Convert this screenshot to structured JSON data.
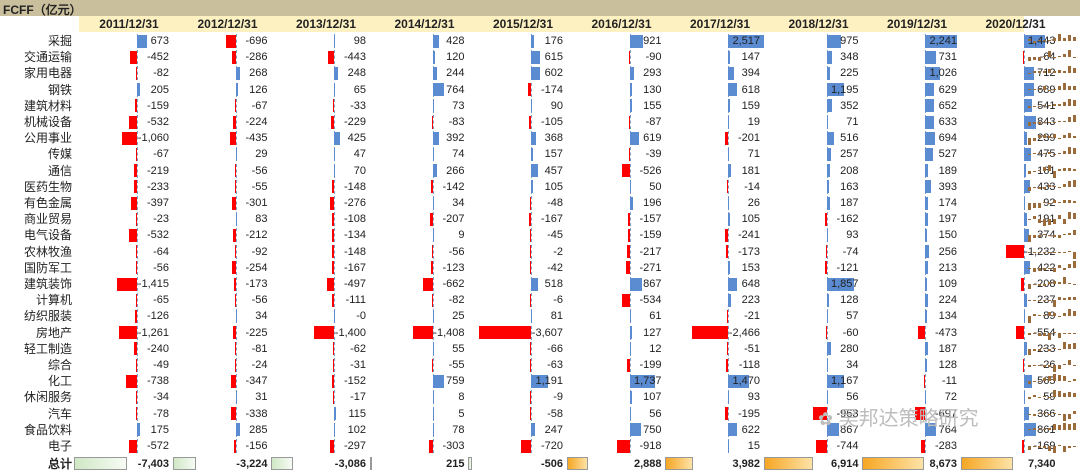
{
  "title": "FCFF（亿元）",
  "watermark": "吴邦达策略研究",
  "years": [
    "2011/12/31",
    "2012/12/31",
    "2013/12/31",
    "2014/12/31",
    "2015/12/31",
    "2016/12/31",
    "2017/12/31",
    "2018/12/31",
    "2019/12/31",
    "2020/12/31"
  ],
  "rows": [
    {
      "name": "采掘",
      "values": [
        673,
        -696,
        98,
        428,
        176,
        921,
        2517,
        975,
        2241,
        1443
      ]
    },
    {
      "name": "交通运输",
      "values": [
        -452,
        -286,
        -443,
        120,
        615,
        -90,
        147,
        348,
        731,
        -64
      ]
    },
    {
      "name": "家用电器",
      "values": [
        -82,
        268,
        248,
        244,
        602,
        293,
        394,
        225,
        1026,
        712
      ]
    },
    {
      "name": "钢铁",
      "values": [
        205,
        126,
        65,
        764,
        -174,
        130,
        618,
        1195,
        629,
        689
      ]
    },
    {
      "name": "建筑材料",
      "values": [
        -159,
        -67,
        -33,
        73,
        90,
        155,
        159,
        352,
        652,
        541
      ]
    },
    {
      "name": "机械设备",
      "values": [
        -532,
        -224,
        -229,
        -83,
        -105,
        -87,
        19,
        71,
        633,
        843
      ]
    },
    {
      "name": "公用事业",
      "values": [
        -1060,
        -435,
        425,
        392,
        368,
        619,
        -201,
        516,
        694,
        239
      ]
    },
    {
      "name": "传媒",
      "values": [
        -67,
        29,
        47,
        74,
        157,
        -39,
        71,
        257,
        527,
        475
      ]
    },
    {
      "name": "通信",
      "values": [
        -219,
        -56,
        70,
        266,
        457,
        -526,
        181,
        208,
        189,
        161
      ]
    },
    {
      "name": "医药生物",
      "values": [
        -233,
        -55,
        -148,
        -142,
        105,
        50,
        -14,
        163,
        393,
        433
      ]
    },
    {
      "name": "有色金属",
      "values": [
        -397,
        -301,
        -276,
        34,
        -48,
        196,
        26,
        187,
        174,
        92
      ]
    },
    {
      "name": "商业贸易",
      "values": [
        -23,
        83,
        -108,
        -207,
        -167,
        -157,
        105,
        -162,
        197,
        191
      ]
    },
    {
      "name": "电气设备",
      "values": [
        -532,
        -212,
        -134,
        9,
        -45,
        -159,
        -241,
        93,
        150,
        374
      ]
    },
    {
      "name": "农林牧渔",
      "values": [
        -64,
        -92,
        -148,
        -56,
        -2,
        -217,
        -173,
        -74,
        256,
        -1232
      ]
    },
    {
      "name": "国防军工",
      "values": [
        -56,
        -254,
        -167,
        -123,
        -42,
        -271,
        153,
        -121,
        213,
        422
      ]
    },
    {
      "name": "建筑装饰",
      "values": [
        -1415,
        -173,
        -497,
        -662,
        518,
        867,
        648,
        1857,
        109,
        -208
      ]
    },
    {
      "name": "计算机",
      "values": [
        -65,
        -56,
        -111,
        -82,
        -6,
        -534,
        223,
        128,
        224,
        237
      ]
    },
    {
      "name": "纺织服装",
      "values": [
        -126,
        34,
        0,
        25,
        81,
        61,
        -21,
        57,
        134,
        89
      ]
    },
    {
      "name": "房地产",
      "values": [
        -1261,
        -225,
        -1400,
        -1408,
        -3607,
        127,
        -2466,
        -60,
        -473,
        -554
      ]
    },
    {
      "name": "轻工制造",
      "values": [
        -240,
        -81,
        -62,
        55,
        -66,
        12,
        -51,
        280,
        187,
        233
      ]
    },
    {
      "name": "综合",
      "values": [
        -49,
        -24,
        -31,
        -55,
        -63,
        -199,
        -118,
        34,
        128,
        -26
      ]
    },
    {
      "name": "化工",
      "values": [
        -738,
        -347,
        -152,
        759,
        1191,
        1737,
        1470,
        1167,
        -11,
        565
      ]
    },
    {
      "name": "休闲服务",
      "values": [
        -34,
        31,
        -17,
        8,
        -9,
        107,
        93,
        56,
        72,
        59
      ]
    },
    {
      "name": "汽车",
      "values": [
        -78,
        -338,
        115,
        5,
        -58,
        56,
        -195,
        -963,
        -697,
        366
      ]
    },
    {
      "name": "食品饮料",
      "values": [
        175,
        285,
        102,
        78,
        247,
        750,
        622,
        867,
        764,
        861
      ]
    },
    {
      "name": "电子",
      "values": [
        -572,
        -156,
        -297,
        -303,
        -720,
        -918,
        15,
        -744,
        -283,
        -169
      ]
    }
  ],
  "total": {
    "label": "总计",
    "values": [
      -7403,
      -3224,
      -3086,
      215,
      -506,
      2888,
      3982,
      6914,
      8673,
      7340
    ]
  },
  "colors": {
    "positive": "#5b8bd0",
    "negative": "#ff0000",
    "header": "#fdf1c2",
    "title_bg": "#c9bf9d",
    "spark": "#9b6b3a"
  }
}
